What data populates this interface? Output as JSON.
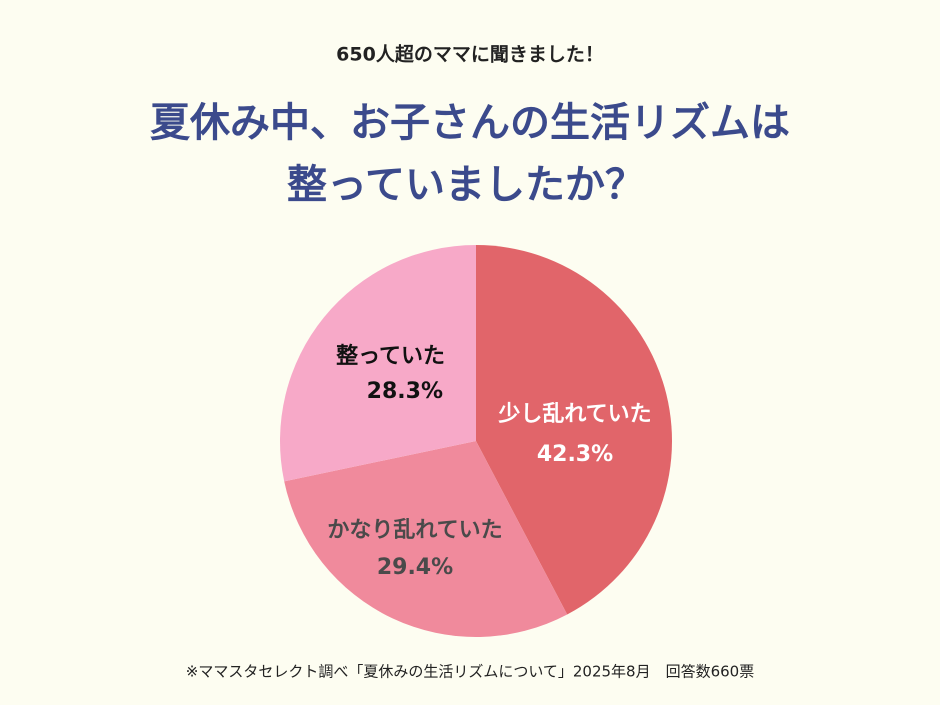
{
  "chart_data": {
    "type": "pie",
    "subtitle": "650人超のママに聞きました！",
    "title": [
      "夏休み中、お子さんの生活リズムは",
      "整っていましたか？"
    ],
    "categories": [
      "少し乱れていた",
      "かなり乱れていた",
      "整っていた"
    ],
    "values": [
      42.3,
      29.4,
      28.3
    ],
    "value_labels": [
      "42.3%",
      "29.4%",
      "28.3%"
    ],
    "colors": [
      "#e1656a",
      "#f08a9c",
      "#f7a9c8"
    ],
    "note": "※ママスタセレクト調べ「夏休みの生活リズムについて」2025年8月　回答数660票"
  }
}
